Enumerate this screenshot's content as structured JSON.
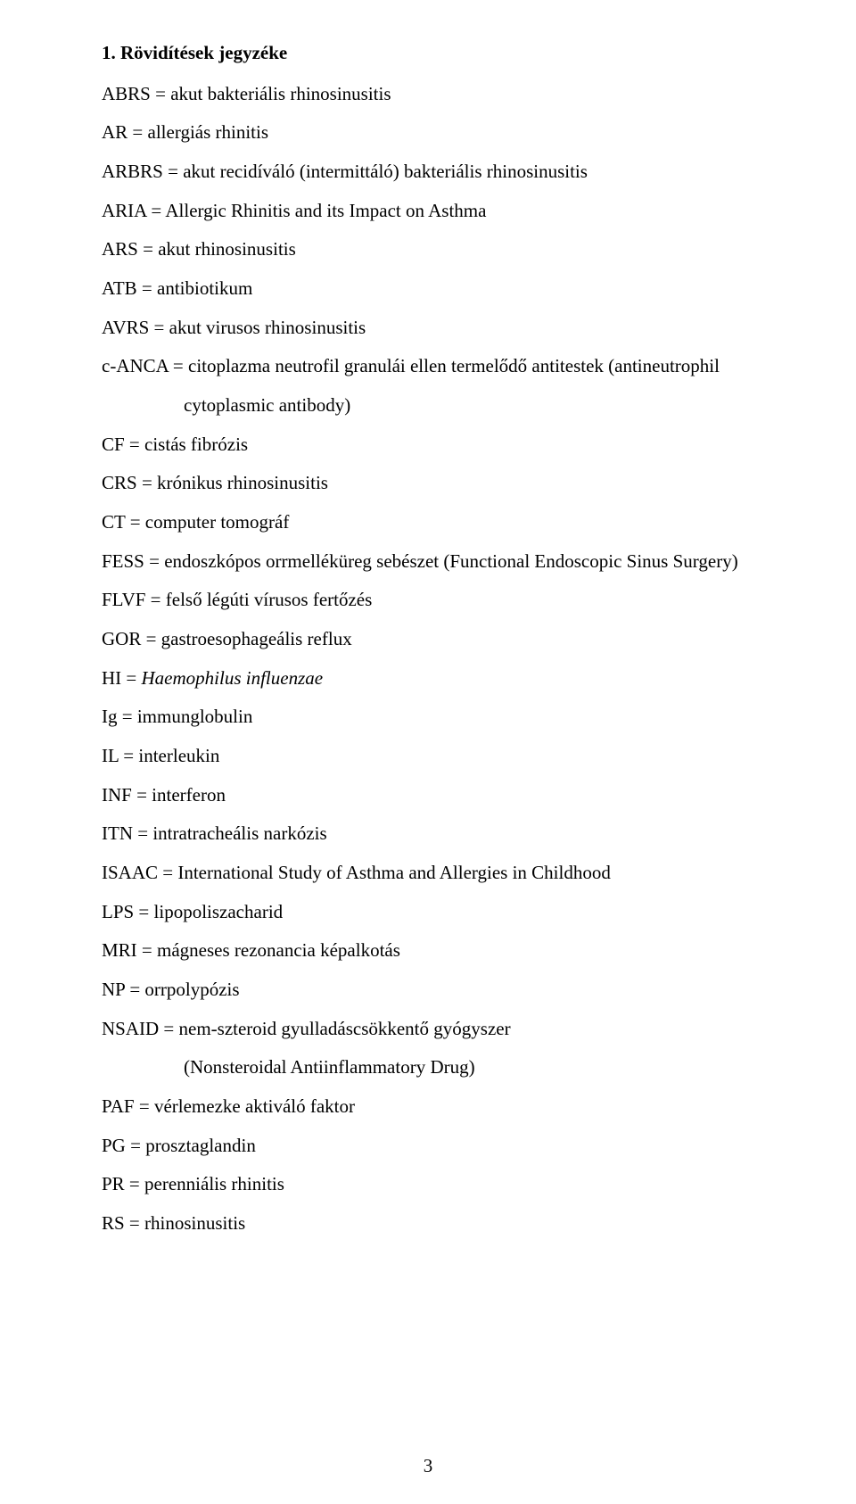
{
  "heading": "1. Rövidítések jegyzéke",
  "lines": [
    {
      "text": "ABRS = akut bakteriális rhinosinusitis"
    },
    {
      "text": "AR = allergiás rhinitis"
    },
    {
      "text": "ARBRS = akut recidíváló (intermittáló) bakteriális rhinosinusitis"
    },
    {
      "text": "ARIA = Allergic Rhinitis and its Impact on Asthma"
    },
    {
      "text": "ARS = akut rhinosinusitis"
    },
    {
      "text": "ATB = antibiotikum"
    },
    {
      "text": "AVRS = akut virusos rhinosinusitis"
    },
    {
      "text": "c-ANCA = citoplazma neutrofil granulái ellen termelődő antitestek (antineutrophil"
    },
    {
      "text": "cytoplasmic antibody)",
      "indent": true
    },
    {
      "text": "CF = cistás fibrózis"
    },
    {
      "text": "CRS = krónikus rhinosinusitis"
    },
    {
      "text": "CT = computer tomográf"
    },
    {
      "text": "FESS = endoszkópos orrmelléküreg sebészet (Functional Endoscopic Sinus Surgery)"
    },
    {
      "text": "FLVF = felső légúti vírusos fertőzés"
    },
    {
      "text": "GOR = gastroesophageális reflux"
    },
    {
      "prefix": "HI = ",
      "italic": "Haemophilus influenzae"
    },
    {
      "text": "Ig = immunglobulin"
    },
    {
      "text": "IL = interleukin"
    },
    {
      "text": "INF = interferon"
    },
    {
      "text": "ITN = intratracheális narkózis"
    },
    {
      "text": "ISAAC = International Study of Asthma and Allergies in Childhood"
    },
    {
      "text": "LPS = lipopoliszacharid"
    },
    {
      "text": "MRI = mágneses rezonancia képalkotás"
    },
    {
      "text": "NP = orrpolypózis"
    },
    {
      "text": "NSAID = nem-szteroid gyulladáscsökkentő gyógyszer"
    },
    {
      "text": "(Nonsteroidal Antiinflammatory Drug)",
      "indent": true
    },
    {
      "text": "PAF = vérlemezke aktiváló faktor"
    },
    {
      "text": "PG = prosztaglandin"
    },
    {
      "text": "PR = perenniális rhinitis"
    },
    {
      "text": "RS = rhinosinusitis"
    }
  ],
  "page_number": "3",
  "colors": {
    "background": "#ffffff",
    "text": "#000000"
  },
  "typography": {
    "font_family": "Times New Roman",
    "body_fontsize_pt": 16,
    "line_height": 2.08,
    "heading_weight": "bold"
  }
}
